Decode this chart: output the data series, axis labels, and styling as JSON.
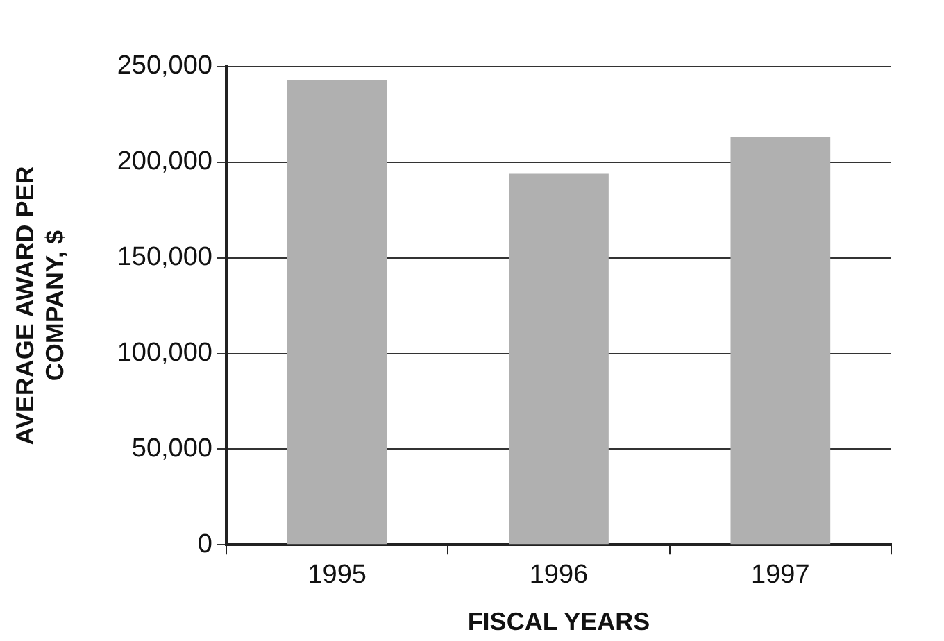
{
  "chart_data": {
    "type": "bar",
    "xlabel": "FISCAL YEARS",
    "ylabel": "AVERAGE AWARD PER COMPANY, $",
    "categories": [
      "1995",
      "1996",
      "1997"
    ],
    "values": [
      243000,
      194000,
      213000
    ],
    "color": "#b0b0b0",
    "ylim": [
      0,
      250000
    ],
    "yticks": [
      {
        "value": 0,
        "label": "0"
      },
      {
        "value": 50000,
        "label": "50,000"
      },
      {
        "value": 100000,
        "label": "100,000"
      },
      {
        "value": 150000,
        "label": "150,000"
      },
      {
        "value": 200000,
        "label": "200,000"
      },
      {
        "value": 250000,
        "label": "250,000"
      }
    ],
    "grid": "y"
  }
}
